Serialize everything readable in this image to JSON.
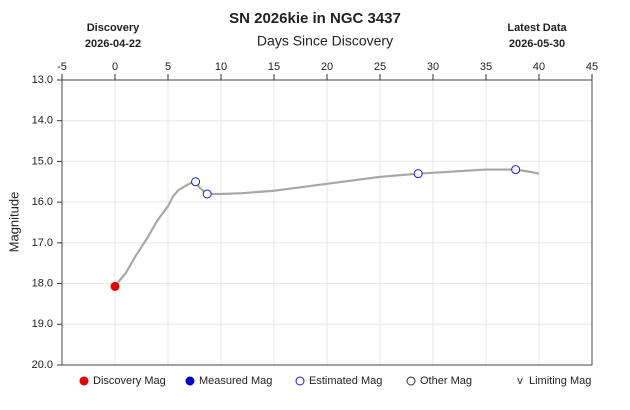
{
  "chart_data": {
    "type": "line",
    "title": "SN 2026kie in NGC 3437",
    "subtitle": "Days Since Discovery",
    "left_header": {
      "label": "Discovery",
      "date": "2026-04-22"
    },
    "right_header": {
      "label": "Latest Data",
      "date": "2026-05-30"
    },
    "y_label": "Magnitude",
    "xlim": [
      -5,
      45
    ],
    "xticks": [
      -5,
      0,
      5,
      10,
      15,
      20,
      25,
      30,
      35,
      40,
      45
    ],
    "ylim": [
      13.0,
      20.0
    ],
    "y_inverted": true,
    "yticks": [
      {
        "value": 13,
        "label": "13.0"
      },
      {
        "value": 14,
        "label": "14.0"
      },
      {
        "value": 15,
        "label": "15.0"
      },
      {
        "value": 16,
        "label": "16.0"
      },
      {
        "value": 17,
        "label": "17.0"
      },
      {
        "value": 18,
        "label": "18.0"
      },
      {
        "value": 19,
        "label": "19.0"
      },
      {
        "value": 20,
        "label": "20.0"
      }
    ],
    "grid": true,
    "curve": {
      "color": "#a8a8a8",
      "x": [
        0,
        0.5,
        1,
        2,
        3,
        4,
        5,
        5.5,
        6,
        7,
        7.6,
        8,
        8.7,
        10,
        12,
        15,
        20,
        25,
        28.6,
        30,
        33,
        35,
        37.8,
        39,
        40
      ],
      "values": [
        18.07,
        17.9,
        17.75,
        17.3,
        16.9,
        16.45,
        16.1,
        15.85,
        15.7,
        15.55,
        15.5,
        15.65,
        15.8,
        15.8,
        15.78,
        15.72,
        15.55,
        15.38,
        15.3,
        15.28,
        15.23,
        15.2,
        15.2,
        15.25,
        15.3
      ]
    },
    "series": [
      {
        "name": "Discovery Mag",
        "color": "#e00000",
        "symbol": "filled",
        "x": [
          0
        ],
        "values": [
          18.07
        ]
      },
      {
        "name": "Measured Mag",
        "color": "#0000c0",
        "symbol": "filled",
        "x": [],
        "values": []
      },
      {
        "name": "Estimated Mag",
        "color": "#1a1ad0",
        "symbol": "hollow",
        "x": [
          7.6,
          8.7,
          28.6,
          37.8
        ],
        "values": [
          15.5,
          15.8,
          15.3,
          15.2
        ]
      },
      {
        "name": "Other Mag",
        "color": "#333333",
        "symbol": "hollow",
        "x": [],
        "values": []
      },
      {
        "name": "Limiting Mag",
        "color": "#333333",
        "symbol": "v",
        "x": [],
        "values": []
      }
    ]
  }
}
